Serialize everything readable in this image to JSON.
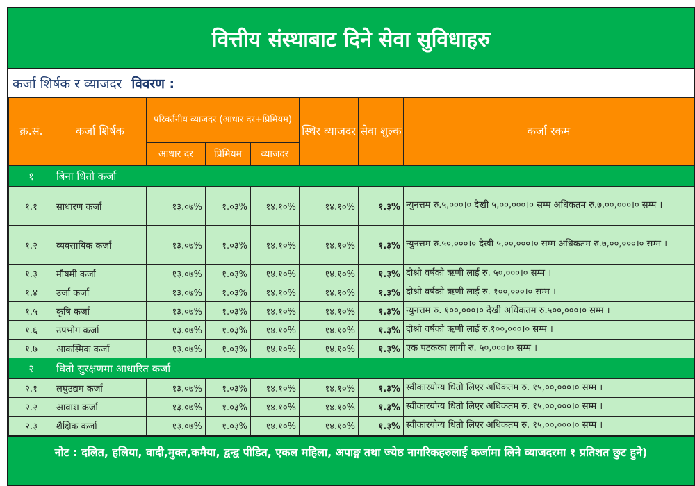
{
  "title": "वित्तीय संस्थाबाट दिने सेवा सुविधाहरु",
  "subtitle": {
    "label": "कर्जा शिर्षक र व्याजदर",
    "bold": "विवरण :"
  },
  "headers": {
    "sn": "क्र.सं.",
    "loan_title": "कर्जा शिर्षक",
    "variable": "परिवर्तनीय व्याजदर (आधार दर+प्रिमियम)",
    "base_rate": "आधार दर",
    "premium": "प्रिमियम",
    "rate": "व्याजदर",
    "fixed": "स्थिर व्याजदर",
    "fee": "सेवा शुल्क",
    "amount": "कर्जा रकम"
  },
  "groups": [
    {
      "sn": "१",
      "name": "बिना धितो कर्जा",
      "rows": [
        {
          "sn": "१.१",
          "name": "साधारण कर्जा",
          "base": "१३.०७%",
          "premium": "१.०३%",
          "rate": "१४.१०%",
          "fixed": "१४.१०%",
          "fee": "१.३%",
          "amount": "न्युनत्तम रु.५,०००।० देखी ५,००,०००।० सम्म अधिकतम रु.७,००,०००।० सम्म ।",
          "tall": true
        },
        {
          "sn": "१.२",
          "name": "व्यवसायिक कर्जा",
          "base": "१३.०७%",
          "premium": "१.०३%",
          "rate": "१४.१०%",
          "fixed": "१४.१०%",
          "fee": "१.३%",
          "amount": "न्युनत्तम रु.५०,०००।० देखी ५,००,०००।० सम्म अधिकतम रु.७,००,०००।० सम्म ।",
          "tall": true
        },
        {
          "sn": "१.३",
          "name": "मौषमी कर्जा",
          "base": "१३.०७%",
          "premium": "१.०३%",
          "rate": "१४.१०%",
          "fixed": "१४.१०%",
          "fee": "१.३%",
          "amount": "दोश्रो वर्षको ऋणी लाई रु. ५०,०००।० सम्म ।"
        },
        {
          "sn": "१.४",
          "name": "उर्जा कर्जा",
          "base": "१३.०७%",
          "premium": "१.०३%",
          "rate": "१४.१०%",
          "fixed": "१४.१०%",
          "fee": "१.३%",
          "amount": "दोश्रो वर्षको ऋणी लाई रु. १००,०००।० सम्म ।"
        },
        {
          "sn": "१.५",
          "name": "कृषि कर्जा",
          "base": "१३.०७%",
          "premium": "१.०३%",
          "rate": "१४.१०%",
          "fixed": "१४.१०%",
          "fee": "१.३%",
          "amount": "न्युनत्तम रु. १००,०००।० देखी अधिकतम रु.५००,०००।० सम्म ।"
        },
        {
          "sn": "१.६",
          "name": "उपभोग कर्जा",
          "base": "१३.०७%",
          "premium": "१.०३%",
          "rate": "१४.१०%",
          "fixed": "१४.१०%",
          "fee": "१.३%",
          "amount": "दोश्रो वर्षको ऋणी लाई रु.१००,०००।० सम्म ।"
        },
        {
          "sn": "१.७",
          "name": "आकस्मिक कर्जा",
          "base": "१३.०७%",
          "premium": "१.०३%",
          "rate": "१४.१०%",
          "fixed": "१४.१०%",
          "fee": "१.३%",
          "amount": "एक पटकका लागी रु. ५०,०००।० सम्म ।"
        }
      ]
    },
    {
      "sn": "२",
      "name": "धितो सुरक्षणमा आधारित कर्जा",
      "rows": [
        {
          "sn": "२.१",
          "name": "लघुउद्यम कर्जा",
          "base": "१३.०७%",
          "premium": "१.०३%",
          "rate": "१४.१०%",
          "fixed": "१४.१०%",
          "fee": "१.३%",
          "amount": "स्वीकारयोग्य धितो लिएर अधिकतम रु. १५,००,०००।० सम्म ।"
        },
        {
          "sn": "२.२",
          "name": "आवाश कर्जा",
          "base": "१३.०७%",
          "premium": "१.०३%",
          "rate": "१४.१०%",
          "fixed": "१४.१०%",
          "fee": "१.३%",
          "amount": "स्वीकारयोग्य धितो लिएर अधिकतम रु. १५,००,०००।० सम्म ।"
        },
        {
          "sn": "२.३",
          "name": "शैक्षिक कर्जा",
          "base": "१३.०७%",
          "premium": "१.०३%",
          "rate": "१४.१०%",
          "fixed": "१४.१०%",
          "fee": "१.३%",
          "amount": "स्वीकारयोग्य धितो लिएर अधिकतम रु. १५,००,०००।० सम्म ।"
        }
      ]
    }
  ],
  "note": "नोट : दलित, हलिया, वादी,मुक्त,कमैया, द्वन्द्व पीडित, एकल महिला, अपाङ्ग तथा ज्येष्ठ नागरिकहरुलाई कर्जामा लिने व्याजदरमा १ प्रतिशत छुट हुने)",
  "colors": {
    "green": "#00b050",
    "orange": "#fd8c00",
    "row": "#c3eec6"
  }
}
